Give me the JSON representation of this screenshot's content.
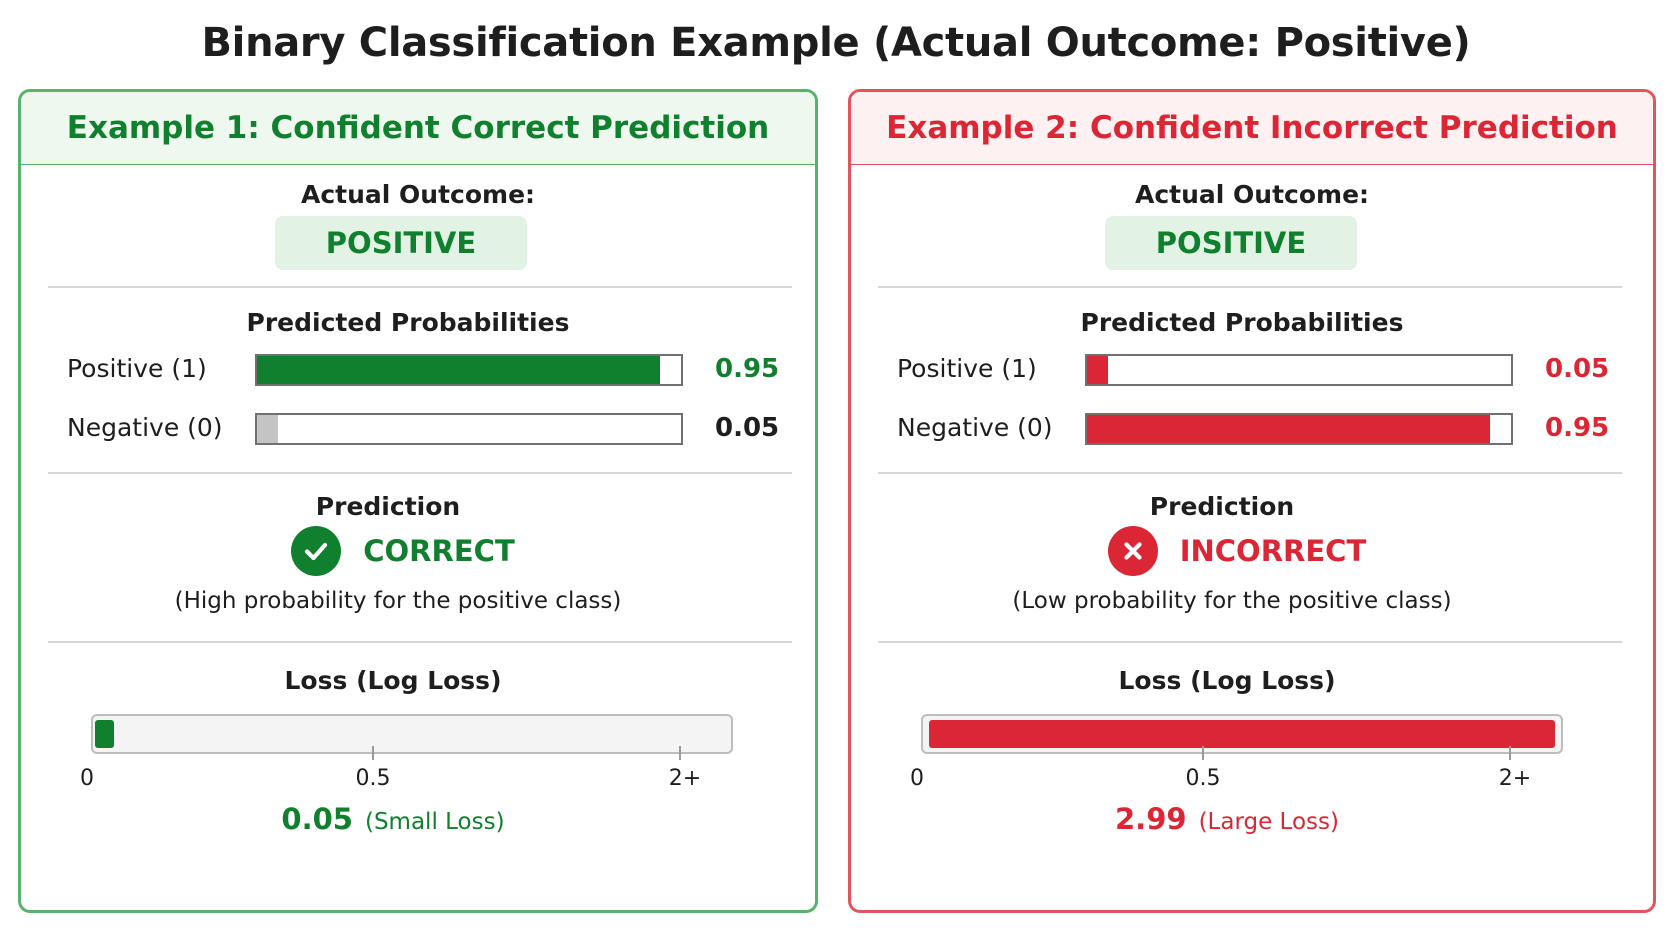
{
  "title": "Binary Classification Example (Actual Outcome: Positive)",
  "colors": {
    "green": "#11802e",
    "red": "#db2735",
    "gray": "#c4c4c4"
  },
  "examples": [
    {
      "header": "Example 1: Confident Correct Prediction",
      "accent": "#11802e",
      "border": "#56b369",
      "header_bg": "#eef8ef",
      "actual_label": "Actual Outcome:",
      "actual_value": "POSITIVE",
      "probs_title": "Predicted Probabilities",
      "probs": [
        {
          "label": "Positive (1)",
          "value": 0.95,
          "display": "0.95",
          "color": "#11802e",
          "value_color": "#11802e"
        },
        {
          "label": "Negative (0)",
          "value": 0.05,
          "display": "0.05",
          "color": "#c4c4c4",
          "value_color": "#1e1e1e"
        }
      ],
      "prediction_title": "Prediction",
      "verdict": "CORRECT",
      "verdict_icon": "check-icon",
      "reason": "(High probability for the positive class)",
      "loss_title": "Loss (Log Loss)",
      "loss_fill": 0.03,
      "ticks": [
        "0",
        "0.5",
        "2+"
      ],
      "loss_value": "0.05",
      "loss_note": "(Small Loss)"
    },
    {
      "header": "Example 2: Confident Incorrect Prediction",
      "accent": "#db2735",
      "border": "#e3545e",
      "header_bg": "#fdf1f2",
      "actual_label": "Actual Outcome:",
      "actual_value": "POSITIVE",
      "probs_title": "Predicted Probabilities",
      "probs": [
        {
          "label": "Positive (1)",
          "value": 0.05,
          "display": "0.05",
          "color": "#db2735",
          "value_color": "#db2735"
        },
        {
          "label": "Negative (0)",
          "value": 0.95,
          "display": "0.95",
          "color": "#db2735",
          "value_color": "#db2735"
        }
      ],
      "prediction_title": "Prediction",
      "verdict": "INCORRECT",
      "verdict_icon": "x-icon",
      "reason": "(Low probability for the positive class)",
      "loss_title": "Loss (Log Loss)",
      "loss_fill": 1.0,
      "ticks": [
        "0",
        "0.5",
        "2+"
      ],
      "loss_value": "2.99",
      "loss_note": "(Large Loss)"
    }
  ]
}
